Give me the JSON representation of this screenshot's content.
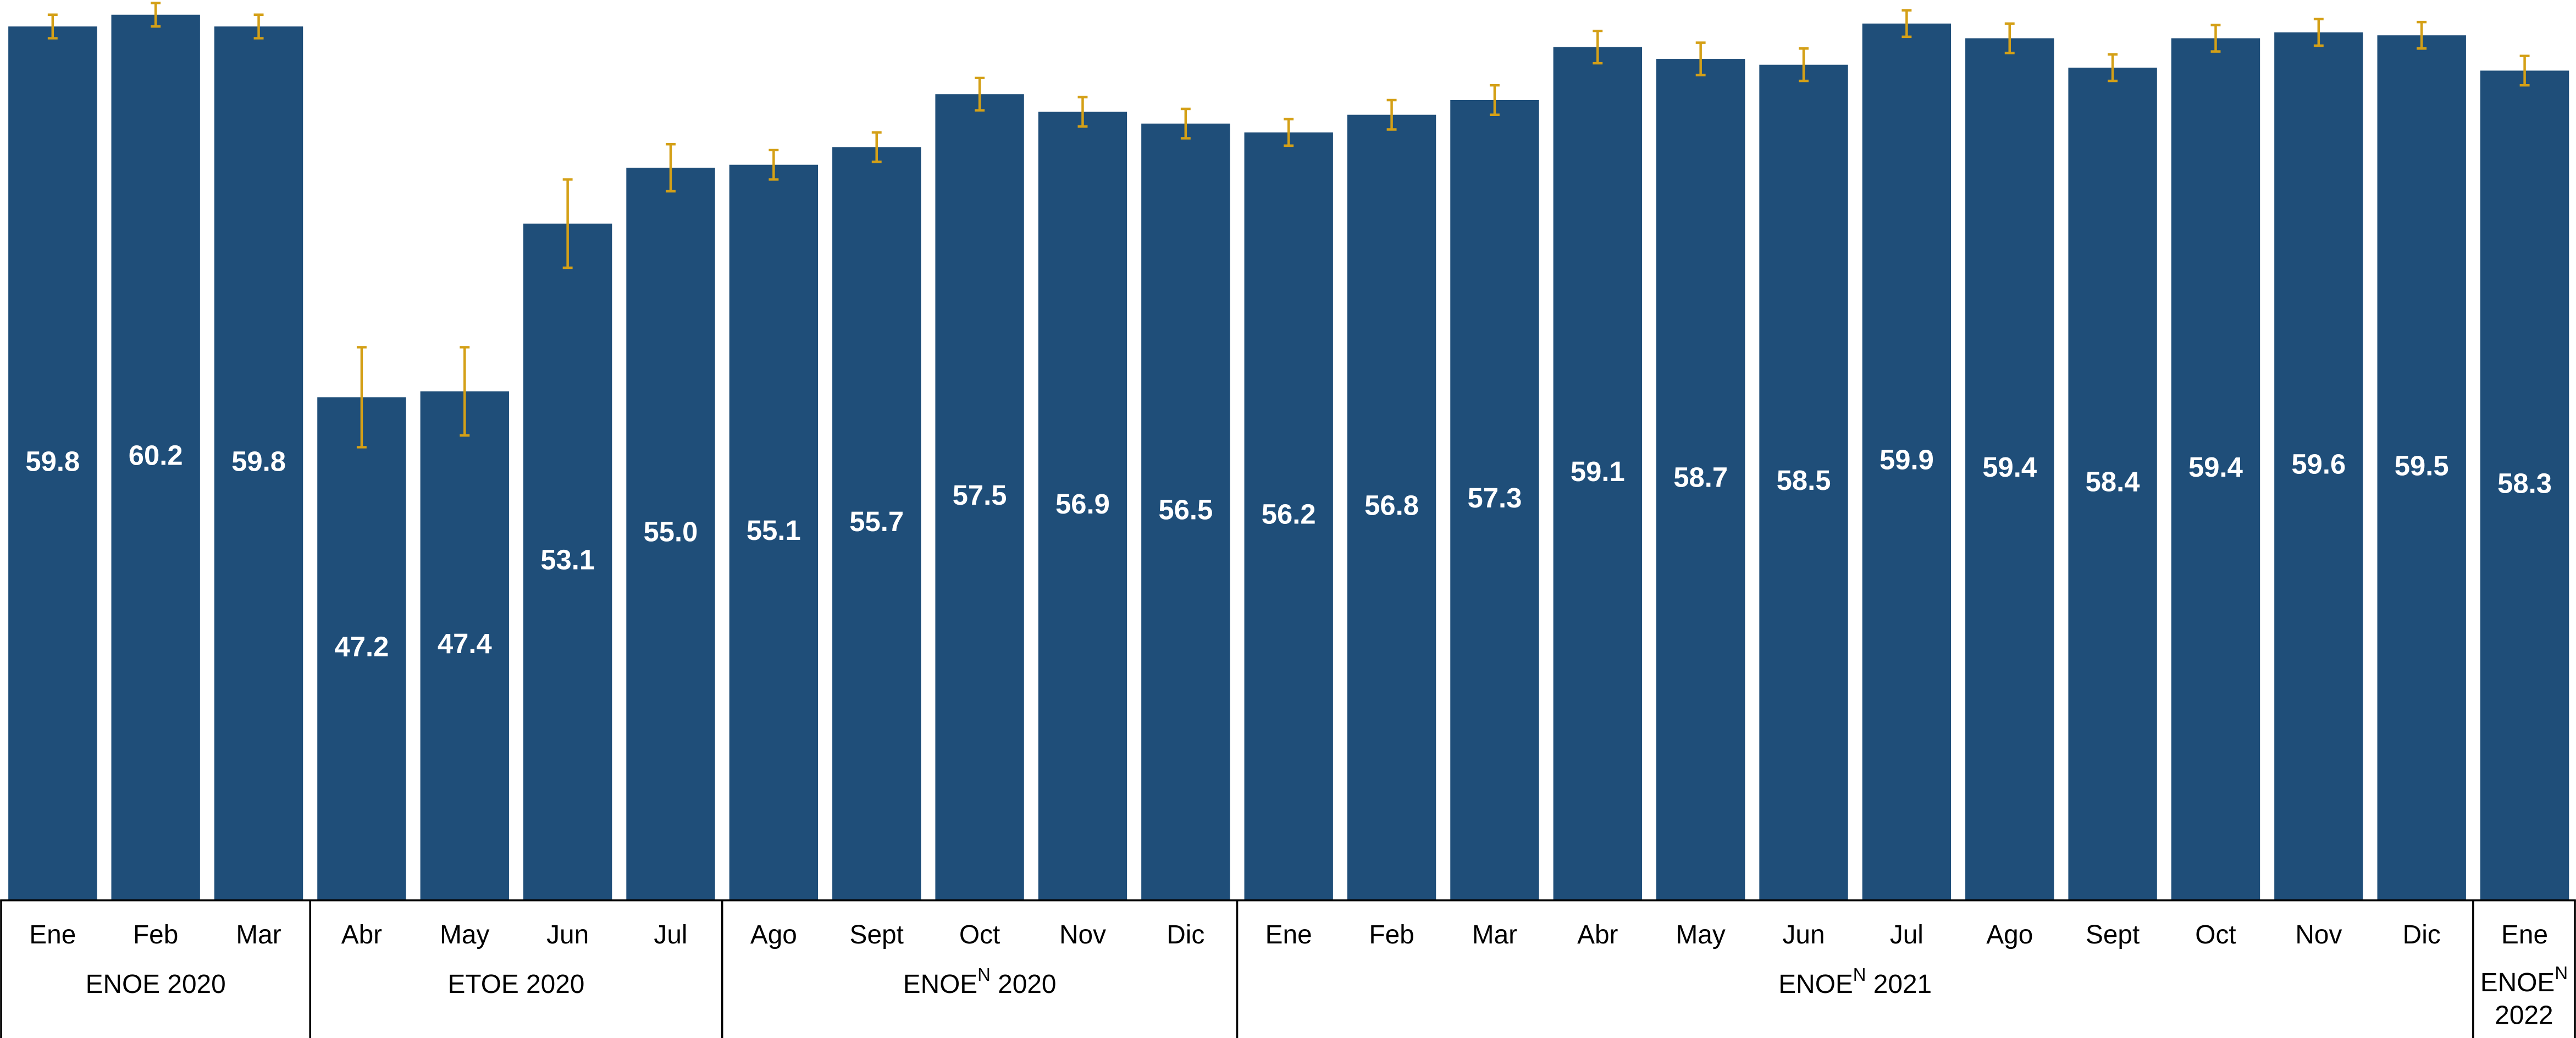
{
  "chart_data": {
    "type": "bar",
    "categories": [
      "Ene",
      "Feb",
      "Mar",
      "Abr",
      "May",
      "Jun",
      "Jul",
      "Ago",
      "Sept",
      "Oct",
      "Nov",
      "Dic",
      "Ene",
      "Feb",
      "Mar",
      "Abr",
      "May",
      "Jun",
      "Jul",
      "Ago",
      "Sept",
      "Oct",
      "Nov",
      "Dic",
      "Ene"
    ],
    "values": [
      59.8,
      60.2,
      59.8,
      47.2,
      47.4,
      53.1,
      55.0,
      55.1,
      55.7,
      57.5,
      56.9,
      56.5,
      56.2,
      56.8,
      57.3,
      59.1,
      58.7,
      58.5,
      59.9,
      59.4,
      58.4,
      59.4,
      59.6,
      59.5,
      58.3
    ],
    "value_labels": [
      "59.8",
      "60.2",
      "59.8",
      "47.2",
      "47.4",
      "53.1",
      "55.0",
      "55.1",
      "55.7",
      "57.5",
      "56.9",
      "56.5",
      "56.2",
      "56.8",
      "57.3",
      "59.1",
      "58.7",
      "58.5",
      "59.9",
      "59.4",
      "58.4",
      "59.4",
      "59.6",
      "59.5",
      "58.3"
    ],
    "errors": [
      0.4,
      0.4,
      0.4,
      1.7,
      1.5,
      1.5,
      0.8,
      0.5,
      0.5,
      0.55,
      0.5,
      0.5,
      0.45,
      0.5,
      0.5,
      0.55,
      0.55,
      0.55,
      0.45,
      0.5,
      0.45,
      0.45,
      0.45,
      0.45,
      0.5
    ],
    "color": "#1f4e79",
    "error_color": "#d4a017",
    "ylim": [
      30.1,
      60.7
    ],
    "groups": [
      {
        "name": "ENOE 2020",
        "span": 3
      },
      {
        "name": "ETOE 2020",
        "span": 4
      },
      {
        "name": "ENOE",
        "sup": "N",
        "suffix": " 2020",
        "span": 5
      },
      {
        "name": "ENOE",
        "sup": "N",
        "suffix": " 2021",
        "span": 12
      },
      {
        "name": "ENOE",
        "sup": "N",
        "suffix": "2022",
        "span": 1,
        "wrap": true
      }
    ]
  }
}
